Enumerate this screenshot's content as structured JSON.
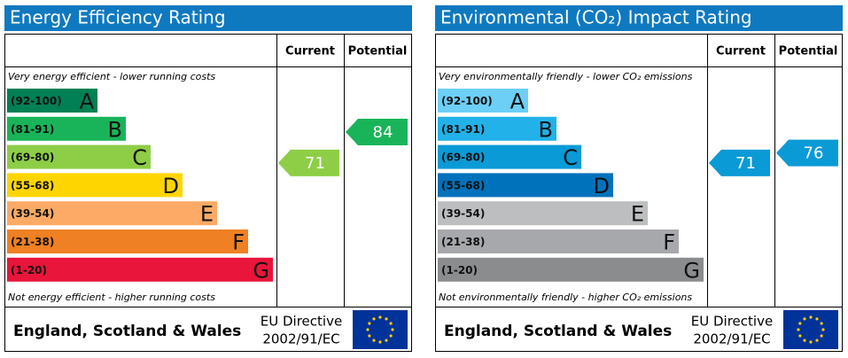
{
  "chart_data": [
    {
      "type": "rating",
      "title": "Energy Efficiency Rating",
      "columns": [
        "Current",
        "Potential"
      ],
      "top_note": "Very energy efficient - lower running costs",
      "bottom_note": "Not energy efficient - higher running costs",
      "bands": [
        {
          "label": "(92-100)",
          "letter": "A",
          "color": "#008054"
        },
        {
          "label": "(81-91)",
          "letter": "B",
          "color": "#19b459"
        },
        {
          "label": "(69-80)",
          "letter": "C",
          "color": "#8dce46"
        },
        {
          "label": "(55-68)",
          "letter": "D",
          "color": "#ffd500"
        },
        {
          "label": "(39-54)",
          "letter": "E",
          "color": "#fcaa65"
        },
        {
          "label": "(21-38)",
          "letter": "F",
          "color": "#ef8023"
        },
        {
          "label": "(1-20)",
          "letter": "G",
          "color": "#e9153b"
        }
      ],
      "current": 71,
      "potential": 84,
      "footer": {
        "region": "England, Scotland & Wales",
        "directive": "EU Directive",
        "code": "2002/91/EC"
      }
    },
    {
      "type": "rating",
      "title": "Environmental (CO₂) Impact Rating",
      "columns": [
        "Current",
        "Potential"
      ],
      "top_note": "Very environmentally friendly - lower CO₂ emissions",
      "bottom_note": "Not environmentally friendly - higher CO₂ emissions",
      "bands": [
        {
          "label": "(92-100)",
          "letter": "A",
          "color": "#6dcff6"
        },
        {
          "label": "(81-91)",
          "letter": "B",
          "color": "#22b1e8"
        },
        {
          "label": "(69-80)",
          "letter": "C",
          "color": "#0a9ad6"
        },
        {
          "label": "(55-68)",
          "letter": "D",
          "color": "#0072bb"
        },
        {
          "label": "(39-54)",
          "letter": "E",
          "color": "#bcbec0"
        },
        {
          "label": "(21-38)",
          "letter": "F",
          "color": "#a6a8ab"
        },
        {
          "label": "(1-20)",
          "letter": "G",
          "color": "#8a8c8e"
        }
      ],
      "current": 71,
      "potential": 76,
      "footer": {
        "region": "England, Scotland & Wales",
        "directive": "EU Directive",
        "code": "2002/91/EC"
      }
    }
  ]
}
